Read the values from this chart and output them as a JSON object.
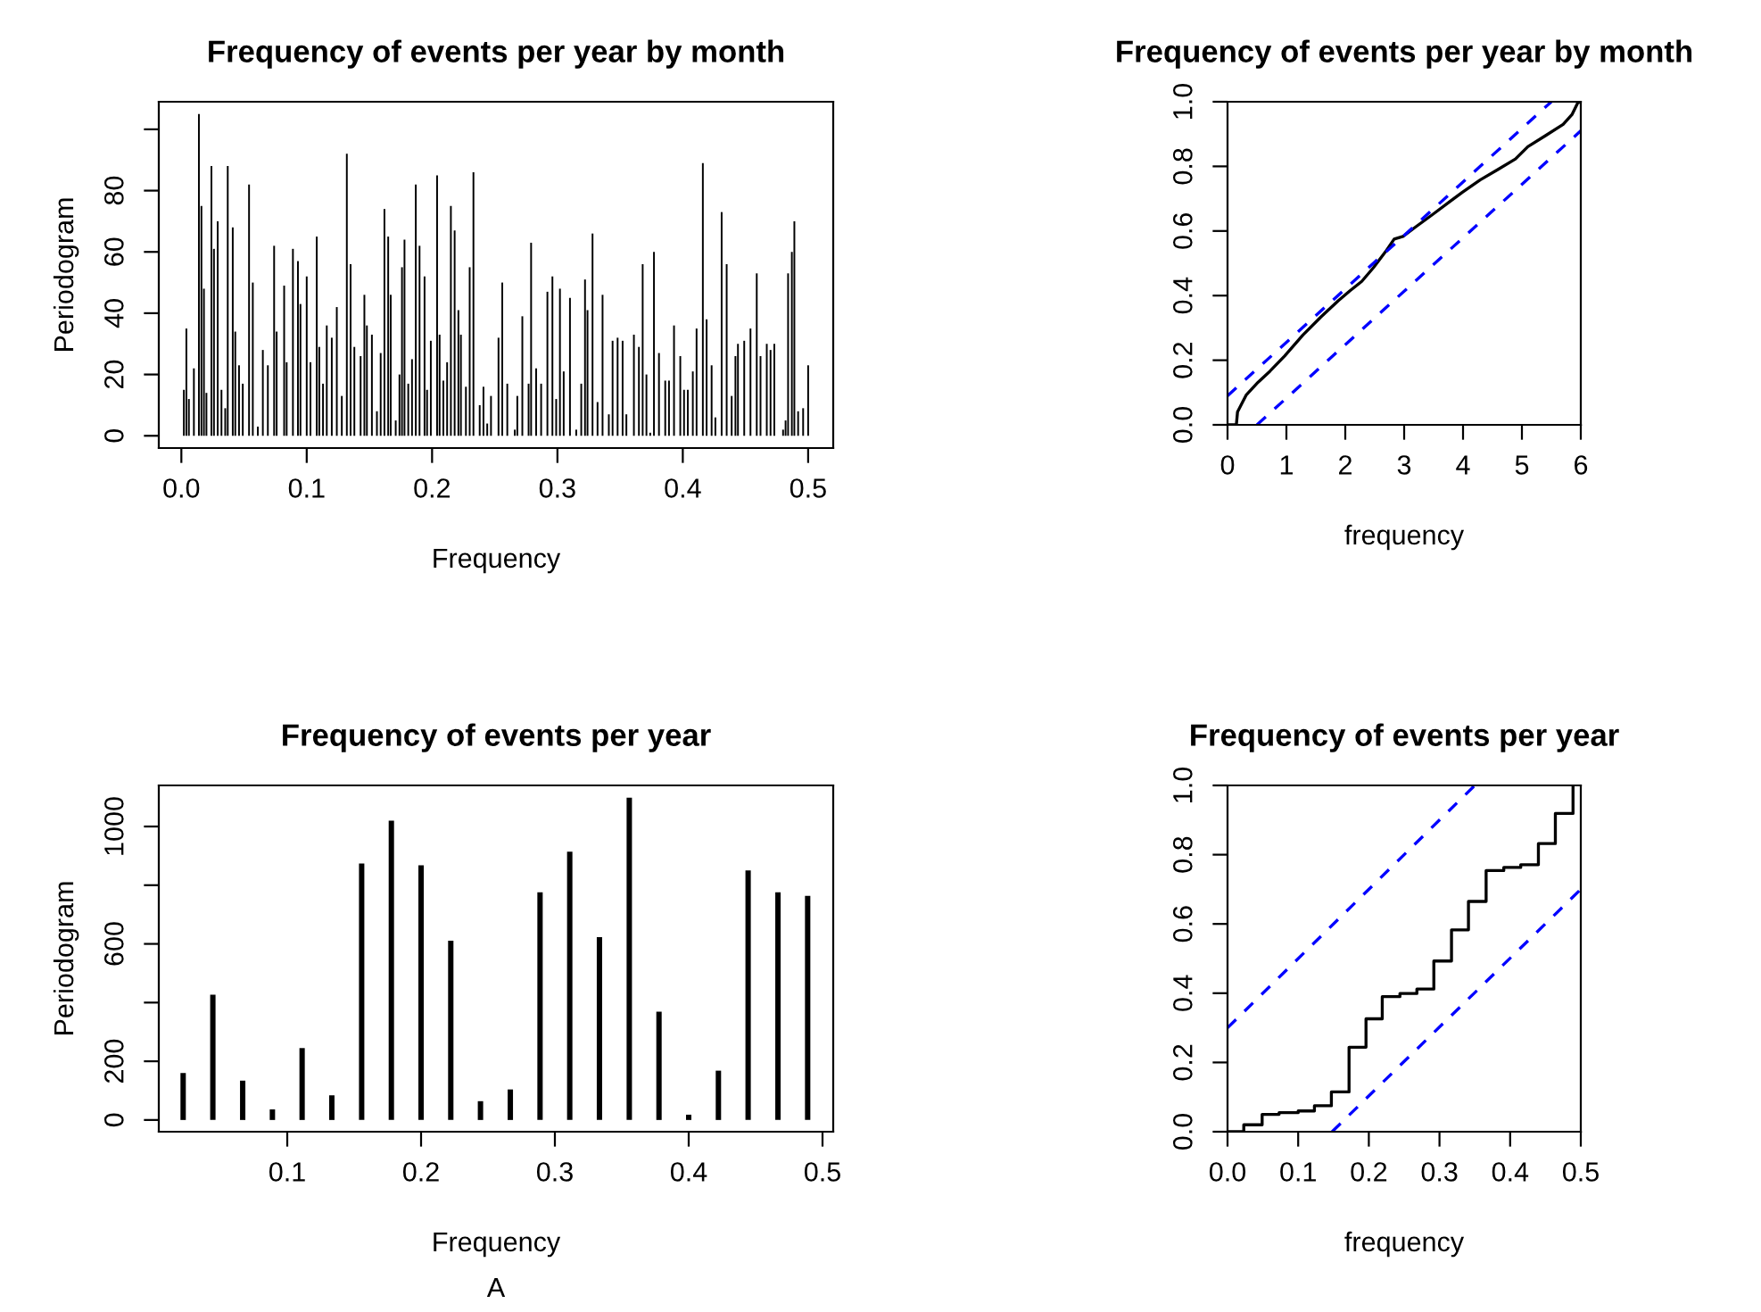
{
  "chart_data": [
    {
      "type": "bar",
      "title": "Frequency of events per year by month",
      "xlabel": "Frequency",
      "ylabel": "Periodogram",
      "color": "#000000",
      "x": [
        0.002,
        0.004,
        0.006,
        0.01,
        0.014,
        0.016,
        0.018,
        0.02,
        0.024,
        0.026,
        0.029,
        0.032,
        0.035,
        0.037,
        0.041,
        0.043,
        0.046,
        0.049,
        0.054,
        0.057,
        0.061,
        0.065,
        0.069,
        0.074,
        0.076,
        0.082,
        0.084,
        0.089,
        0.093,
        0.095,
        0.1,
        0.103,
        0.108,
        0.11,
        0.113,
        0.116,
        0.12,
        0.124,
        0.128,
        0.132,
        0.135,
        0.138,
        0.143,
        0.146,
        0.148,
        0.152,
        0.156,
        0.159,
        0.162,
        0.165,
        0.167,
        0.171,
        0.174,
        0.176,
        0.178,
        0.181,
        0.184,
        0.187,
        0.19,
        0.194,
        0.196,
        0.199,
        0.204,
        0.206,
        0.209,
        0.212,
        0.215,
        0.218,
        0.221,
        0.223,
        0.227,
        0.23,
        0.233,
        0.238,
        0.241,
        0.244,
        0.247,
        0.253,
        0.256,
        0.26,
        0.266,
        0.268,
        0.272,
        0.277,
        0.279,
        0.283,
        0.287,
        0.292,
        0.296,
        0.299,
        0.302,
        0.305,
        0.31,
        0.315,
        0.319,
        0.322,
        0.324,
        0.328,
        0.332,
        0.336,
        0.341,
        0.344,
        0.348,
        0.352,
        0.355,
        0.361,
        0.365,
        0.368,
        0.371,
        0.374,
        0.377,
        0.381,
        0.386,
        0.389,
        0.393,
        0.398,
        0.401,
        0.404,
        0.408,
        0.411,
        0.416,
        0.419,
        0.423,
        0.426,
        0.431,
        0.435,
        0.439,
        0.442,
        0.444,
        0.449,
        0.454,
        0.459,
        0.462,
        0.467,
        0.47,
        0.473,
        0.48,
        0.482,
        0.484,
        0.487,
        0.489,
        0.492,
        0.496,
        0.5
      ],
      "values": [
        15,
        35,
        12,
        22,
        105,
        75,
        48,
        14,
        88,
        61,
        70,
        15,
        9,
        88,
        68,
        34,
        23,
        17,
        82,
        50,
        3,
        28,
        23,
        62,
        34,
        49,
        24,
        61,
        57,
        43,
        52,
        24,
        65,
        29,
        17,
        36,
        32,
        42,
        13,
        92,
        56,
        29,
        26,
        46,
        36,
        33,
        8,
        27,
        74,
        65,
        46,
        5,
        20,
        55,
        64,
        17,
        25,
        82,
        62,
        52,
        15,
        31,
        85,
        33,
        18,
        24,
        75,
        67,
        41,
        33,
        16,
        55,
        86,
        10,
        16,
        4,
        13,
        32,
        50,
        17,
        2,
        13,
        39,
        17,
        63,
        22,
        17,
        47,
        52,
        12,
        48,
        21,
        45,
        2,
        17,
        51,
        41,
        66,
        11,
        46,
        7,
        31,
        32,
        31,
        7,
        33,
        29,
        56,
        20,
        1,
        60,
        27,
        18,
        18,
        36,
        26,
        15,
        15,
        21,
        35,
        89,
        38,
        23,
        6,
        73,
        56,
        13,
        26,
        30,
        31,
        35,
        53,
        26,
        30,
        28,
        30,
        2,
        5,
        53,
        60,
        70,
        8,
        9,
        23
      ],
      "xlim": [
        -0.018,
        0.52
      ],
      "ylim": [
        -4,
        109
      ],
      "xticks": [
        {
          "value": 0,
          "label": "0.0"
        },
        0.1,
        0.2,
        0.3,
        0.4,
        0.5
      ],
      "yticks": [
        0,
        20,
        40,
        60,
        80,
        {
          "value": 100,
          "label": null
        }
      ]
    },
    {
      "type": "line",
      "title": "Frequency of events per year by month",
      "xlabel": "frequency",
      "series": [
        {
          "color": "#000000",
          "x": [
            0,
            0.15,
            0.17,
            0.32,
            0.52,
            0.72,
            0.97,
            1.28,
            1.58,
            1.88,
            2.08,
            2.28,
            2.48,
            2.68,
            2.83,
            2.98,
            3.19,
            3.49,
            3.79,
            3.99,
            4.29,
            4.59,
            4.89,
            5.1,
            5.4,
            5.7,
            5.85,
            5.95,
            6
          ],
          "values": [
            0,
            0,
            0.04,
            0.093,
            0.132,
            0.166,
            0.213,
            0.278,
            0.333,
            0.384,
            0.415,
            0.444,
            0.487,
            0.535,
            0.575,
            0.583,
            0.612,
            0.652,
            0.693,
            0.72,
            0.758,
            0.79,
            0.823,
            0.861,
            0.895,
            0.93,
            0.96,
            0.997,
            1.0
          ]
        },
        {
          "type": "line",
          "color": "#0000ff",
          "line_style": "dashed",
          "x": [
            0,
            5.5
          ],
          "values": [
            0.09,
            1.0
          ]
        },
        {
          "type": "line",
          "color": "#0000ff",
          "line_style": "dashed",
          "x": [
            0.5,
            6
          ],
          "values": [
            0,
            0.91
          ]
        }
      ],
      "xlim": [
        0,
        6
      ],
      "ylim": [
        0,
        1
      ],
      "xticks": [
        0,
        1,
        2,
        3,
        4,
        5,
        6
      ],
      "yticks": [
        {
          "value": 0,
          "label": "0.0"
        },
        0.2,
        0.4,
        0.6,
        0.8,
        {
          "value": 1,
          "label": "1.0"
        }
      ]
    },
    {
      "type": "bar",
      "title": "Frequency of events per year",
      "xlabel": "Frequency",
      "ylabel": "Periodogram",
      "color": "#000000",
      "annotations": [
        "A"
      ],
      "x": [
        0.0222,
        0.0444,
        0.0667,
        0.0889,
        0.1111,
        0.1333,
        0.1556,
        0.1778,
        0.2,
        0.2222,
        0.2444,
        0.2667,
        0.2889,
        0.3111,
        0.3333,
        0.3556,
        0.3778,
        0.4,
        0.4222,
        0.4444,
        0.4667,
        0.4889
      ],
      "values": [
        160,
        427,
        134,
        36,
        245,
        84,
        874,
        1020,
        868,
        611,
        64,
        104,
        776,
        914,
        623,
        1098,
        369,
        18,
        168,
        850,
        776,
        764
      ],
      "xlim": [
        0.004,
        0.508
      ],
      "ylim": [
        -40,
        1140
      ],
      "xticks": [
        0.1,
        0.2,
        0.3,
        0.4,
        0.5
      ],
      "yticks": [
        0,
        200,
        {
          "value": 400,
          "label": null
        },
        600,
        {
          "value": 800,
          "label": null
        },
        1000
      ]
    },
    {
      "type": "step",
      "title": "Frequency of events per year",
      "xlabel": "frequency",
      "series": [
        {
          "color": "#000000",
          "x": [
            0,
            0.023,
            0.049,
            0.073,
            0.1,
            0.123,
            0.147,
            0.172,
            0.196,
            0.219,
            0.244,
            0.268,
            0.292,
            0.317,
            0.341,
            0.366,
            0.391,
            0.415,
            0.44,
            0.464,
            0.489
          ],
          "values": [
            0,
            0.02,
            0.05,
            0.055,
            0.06,
            0.075,
            0.115,
            0.244,
            0.326,
            0.39,
            0.399,
            0.412,
            0.493,
            0.583,
            0.665,
            0.754,
            0.763,
            0.771,
            0.832,
            0.919,
            1.0
          ]
        },
        {
          "type": "line",
          "color": "#0000ff",
          "line_style": "dashed",
          "x": [
            0,
            0.35
          ],
          "values": [
            0.3,
            1.0
          ]
        },
        {
          "type": "line",
          "color": "#0000ff",
          "line_style": "dashed",
          "x": [
            0.148,
            0.5
          ],
          "values": [
            0,
            0.7
          ]
        }
      ],
      "xlim": [
        0,
        0.5
      ],
      "ylim": [
        0,
        1
      ],
      "xticks": [
        {
          "value": 0,
          "label": "0.0"
        },
        0.1,
        0.2,
        0.3,
        0.4,
        0.5
      ],
      "yticks": [
        {
          "value": 0,
          "label": "0.0"
        },
        0.2,
        0.4,
        0.6,
        0.8,
        {
          "value": 1,
          "label": "1.0"
        }
      ]
    }
  ]
}
